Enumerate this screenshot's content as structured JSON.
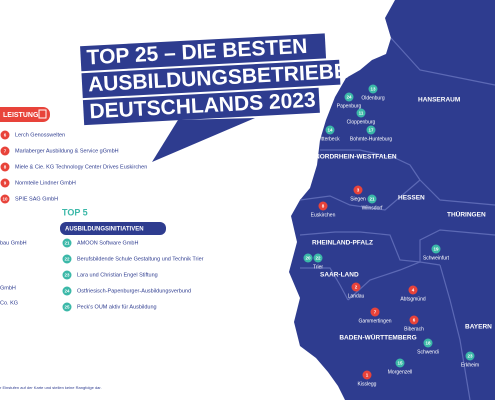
{
  "title_lines": [
    "TOP 25 – DIE BESTEN",
    "AUSBILDUNGSBETRIEBE",
    "DEUTSCHLANDS 2023"
  ],
  "performance": {
    "heading": "LEISTUNG",
    "items": [
      {
        "number": 6,
        "name": "Lerch Genosswelten"
      },
      {
        "number": 7,
        "name": "Marlaberger Ausbildung & Service gGmbH"
      },
      {
        "number": 8,
        "name": "Miele & Cie. KG Technology Center Drives Euskirchen"
      },
      {
        "number": 9,
        "name": "Normteile Lindner GmbH"
      },
      {
        "number": 10,
        "name": "SPIE SAG GmbH"
      }
    ]
  },
  "initiatives": {
    "top_label": "TOP 5",
    "heading": "AUSBILDUNGSINITIATIVEN",
    "items": [
      {
        "number": 21,
        "name": "AMOON Software GmbH"
      },
      {
        "number": 22,
        "name": "Berufsbildende Schule Gestaltung und Technik Trier"
      },
      {
        "number": 23,
        "name": "Lara und Christian Engel Stiftung"
      },
      {
        "number": 24,
        "name": "Ostfriesisch-Papenburger-Ausbildungsverbund"
      },
      {
        "number": 25,
        "name": "Peck's OUM aktiv für Ausbildung"
      }
    ]
  },
  "partial_left": [
    "bau GmbH",
    "GmbH",
    "Co. KG"
  ],
  "regions": [
    "HANSERAUM",
    "NORDRHEIN-WESTFALEN",
    "HESSEN",
    "THÜRINGEN",
    "RHEINLAND-PFALZ",
    "SAAR-LAND",
    "BADEN-WÜRTTEMBERG",
    "BAYERN"
  ],
  "markers": [
    {
      "number": 24,
      "city": "Papenburg"
    },
    {
      "number": 13,
      "city": "Oldenburg"
    },
    {
      "number": 11,
      "city": "Cloppenburg"
    },
    {
      "number": 14,
      "city": "Itterbeck"
    },
    {
      "number": 17,
      "city": "Bohmte-Hunteburg"
    },
    {
      "number": 3,
      "city": "Siegen"
    },
    {
      "number": 21,
      "city": "Wilnsdorf"
    },
    {
      "number": 8,
      "city": "Euskirchen"
    },
    {
      "number": 19,
      "city": "Schweinfurt"
    },
    {
      "number": 20,
      "city": null
    },
    {
      "number": 22,
      "city": "Trier"
    },
    {
      "number": 2,
      "city": "Landau"
    },
    {
      "number": 4,
      "city": "Abtsgmünd"
    },
    {
      "number": 7,
      "city": "Gammertingen"
    },
    {
      "number": 6,
      "city": "Biberach"
    },
    {
      "number": 18,
      "city": "Schwendi"
    },
    {
      "number": 23,
      "city": "Erkheim"
    },
    {
      "number": 15,
      "city": "Morgenzell"
    },
    {
      "number": 1,
      "city": "Kisslegg"
    }
  ],
  "footnote": "r Einstufen auf der Karte und stellen keine Rangfolge dar."
}
